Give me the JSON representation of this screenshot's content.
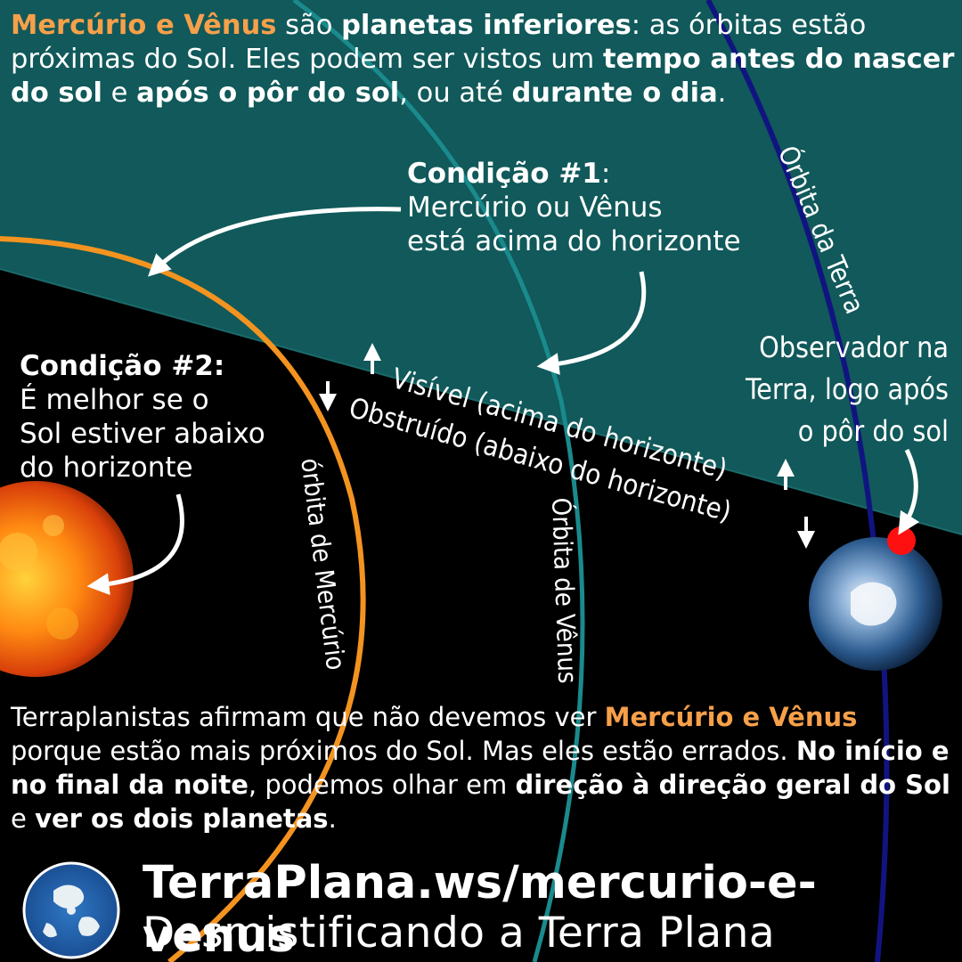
{
  "header": {
    "part1": "Mercúrio e Vênus",
    "part2": " são ",
    "part3": "planetas inferiores",
    "part4": ": as órbitas estão próximas do Sol. Eles podem ser vistos um ",
    "part5": "tempo antes do nascer do sol",
    "part6": " e ",
    "part7": "após o pôr do sol",
    "part8": ", ou até ",
    "part9": "durante o dia",
    "part10": "."
  },
  "condition1": {
    "title": "Condição #1",
    "colon": ":",
    "line1": "Mercúrio ou Vênus",
    "line2": "está acima do horizonte"
  },
  "condition2": {
    "title": "Condição #2:",
    "line1": "É melhor se o",
    "line2": "Sol estiver abaixo",
    "line3": "do horizonte"
  },
  "observer": {
    "line1": "Observador na",
    "line2": "Terra, logo após",
    "line3": "o pôr do sol"
  },
  "horizon": {
    "visible_label": "Visível (acima do horizonte)",
    "obstructed_label": "Obstruído (abaixo do horizonte)"
  },
  "orbits": {
    "earth_label": "Órbita da Terra",
    "venus_label": "Órbita de Vênus",
    "mercury_label": "órbita de Mercúrio"
  },
  "footer": {
    "part1": "Terraplanistas afirmam que não devemos ver ",
    "part2": "Mercúrio e Vênus",
    "part3": " porque estão mais próximos do Sol. Mas eles estão errados. ",
    "part4": "No início e no final da noite",
    "part5": ", podemos olhar em ",
    "part6": "direção à direção geral do Sol",
    "part7": " e ",
    "part8": "ver os dois planetas",
    "part9": "."
  },
  "brand": {
    "url": "TerraPlana.ws/mercurio-e-venus",
    "tagline": "Desmistificando a Terra Plana"
  },
  "colors": {
    "sky_teal": "#11595a",
    "mercury_orbit": "#f39320",
    "venus_orbit": "#1a8a8c",
    "earth_orbit": "#111480",
    "observer_dot": "#ff1010",
    "highlight_orange": "#f7a04a"
  }
}
